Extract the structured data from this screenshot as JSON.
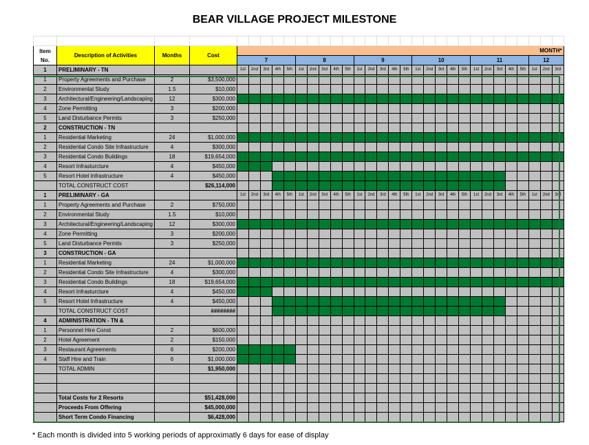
{
  "title": "BEAR VILLAGE PROJECT MILESTONE",
  "headers": {
    "item": "Item No.",
    "description": "Description of Activities",
    "months": "Months",
    "cost": "Cost",
    "month_group": "MONTH*"
  },
  "months": [
    "7",
    "8",
    "9",
    "10",
    "11",
    "12"
  ],
  "periods": [
    "1st",
    "2nd",
    "3rd",
    "4th",
    "5th",
    "1st",
    "2nd",
    "3rd",
    "4th",
    "5th",
    "1st",
    "2nd",
    "3rd",
    "4th",
    "5th",
    "1st",
    "2nd",
    "3rd",
    "4th",
    "5th",
    "1st",
    "2nd",
    "3rd",
    "4th",
    "5th",
    "1st",
    "2nd",
    "3rd"
  ],
  "colors": {
    "bar": "#007a33",
    "header_yellow": "#ffff00",
    "month_orange": "#fabf8f",
    "month_blue": "#8db4e2",
    "cell": "#c0c0c0"
  },
  "rows": [
    {
      "type": "sec1",
      "item": "1",
      "desc": "PRELIMINARY - TN",
      "labels": true
    },
    {
      "item": "1",
      "desc": "Property Agreements and Purchase",
      "months": "2",
      "cost": "$3,500,000",
      "bar": null
    },
    {
      "item": "2",
      "desc": "Environmental Study",
      "months": "1.5",
      "cost": "$10,000",
      "bar": null
    },
    {
      "item": "3",
      "desc": "Architectural/Engineering/Landscaping",
      "months": "12",
      "cost": "$300,000",
      "bar": [
        1,
        28
      ]
    },
    {
      "item": "4",
      "desc": "Zone Permitting",
      "months": "3",
      "cost": "$200,000",
      "bar": null
    },
    {
      "item": "5",
      "desc": "Land Disturbance Permits",
      "months": "3",
      "cost": "$250,000",
      "bar": null
    },
    {
      "type": "sec",
      "item": "2",
      "desc": "CONSTRUCTION - TN"
    },
    {
      "item": "1",
      "desc": "Residential Marketing",
      "months": "24",
      "cost": "$1,000,000",
      "bar": [
        1,
        28
      ]
    },
    {
      "item": "2",
      "desc": "Residential Condo Site Infrastructure",
      "months": "4",
      "cost": "$300,000",
      "bar": null
    },
    {
      "item": "3",
      "desc": "Residential Condo Buildings",
      "months": "18",
      "cost": "$19,654,000",
      "bar": [
        1,
        28
      ]
    },
    {
      "item": "4",
      "desc": "Resort Infrasturcture",
      "months": "4",
      "cost": "$450,000",
      "bar": [
        1,
        3
      ]
    },
    {
      "item": "5",
      "desc": "Resort Hotel Infrastructure",
      "months": "4",
      "cost": "$450,000",
      "bar": [
        4,
        23
      ]
    },
    {
      "type": "total",
      "item": "",
      "desc": "TOTAL CONSTRUCT COST",
      "months": "",
      "cost": "$26,114,000",
      "bar": [
        4,
        23
      ]
    },
    {
      "type": "sec1",
      "item": "1",
      "desc": "PRELIMINARY - GA",
      "labels": true
    },
    {
      "item": "1",
      "desc": "Property Agreements and Purchase",
      "months": "2",
      "cost": "$750,000",
      "bar": null
    },
    {
      "item": "2",
      "desc": "Environmental Study",
      "months": "1.5",
      "cost": "$10,000",
      "bar": null
    },
    {
      "item": "3",
      "desc": "Architectural/Engineering/Landscaping",
      "months": "12",
      "cost": "$300,000",
      "bar": [
        1,
        28
      ]
    },
    {
      "item": "4",
      "desc": "Zone Permitting",
      "months": "3",
      "cost": "$200,000",
      "bar": null
    },
    {
      "item": "5",
      "desc": "Land Disturbance Permits",
      "months": "3",
      "cost": "$250,000",
      "bar": null
    },
    {
      "type": "sec",
      "item": "3",
      "desc": "CONSTRUCTION - GA"
    },
    {
      "item": "1",
      "desc": "Residential Marketing",
      "months": "24",
      "cost": "$1,000,000",
      "bar": [
        1,
        28
      ]
    },
    {
      "item": "2",
      "desc": "Residential Condo Site Infrastructure",
      "months": "4",
      "cost": "$300,000",
      "bar": null
    },
    {
      "item": "3",
      "desc": "Residential Condo Buildings",
      "months": "18",
      "cost": "$19,654,000",
      "bar": [
        1,
        28
      ]
    },
    {
      "item": "4",
      "desc": "Resort Infrasturcture",
      "months": "4",
      "cost": "$450,000",
      "bar": [
        1,
        3
      ]
    },
    {
      "item": "5",
      "desc": "Resort Hotel Infrastructure",
      "months": "4",
      "cost": "$450,000",
      "bar": [
        4,
        23
      ]
    },
    {
      "type": "total",
      "item": "",
      "desc": "TOTAL CONSTRUCT COST",
      "months": "",
      "cost": "########",
      "bar": [
        4,
        23
      ]
    },
    {
      "type": "sec",
      "item": "4",
      "desc": "ADMINISTRATION - TN &"
    },
    {
      "type": "admin",
      "item": "1",
      "desc": "Personnel Hire Const",
      "months": "2",
      "cost": "$600,000",
      "bar": null
    },
    {
      "type": "admin",
      "item": "2",
      "desc": "Hotel Agreement",
      "months": "2",
      "cost": "$150,000",
      "bar": null
    },
    {
      "type": "admin",
      "item": "3",
      "desc": "Restaurant Agreements",
      "months": "6",
      "cost": "$200,000",
      "bar": [
        1,
        5
      ]
    },
    {
      "type": "admin",
      "item": "4",
      "desc": "Staff Hire and Train",
      "months": "6",
      "cost": "$1,000,000",
      "bar": [
        1,
        5
      ]
    },
    {
      "type": "admintotal",
      "item": "",
      "desc": "TOTAL ADMIN",
      "months": "",
      "cost": "$1,950,000",
      "bar": null
    },
    {
      "type": "empty",
      "item": "",
      "desc": "",
      "months": "",
      "cost": "",
      "bar": null
    },
    {
      "type": "empty",
      "item": "",
      "desc": "",
      "months": "",
      "cost": "",
      "bar": null
    },
    {
      "type": "grand",
      "item": "",
      "desc": "Total Costs for 2 Resorts",
      "months": "",
      "cost": "$51,428,000",
      "bar": null
    },
    {
      "type": "grand",
      "item": "",
      "desc": "Proceeds From Offering",
      "months": "",
      "cost": "$45,000,000",
      "bar": null
    },
    {
      "type": "grand",
      "item": "",
      "desc": "Short Term Condo Financing",
      "months": "",
      "cost": "$6,428,000",
      "bar": null
    }
  ],
  "footnote": "* Each month is divided into 5 working periods of approximatly 6 days for ease of display"
}
